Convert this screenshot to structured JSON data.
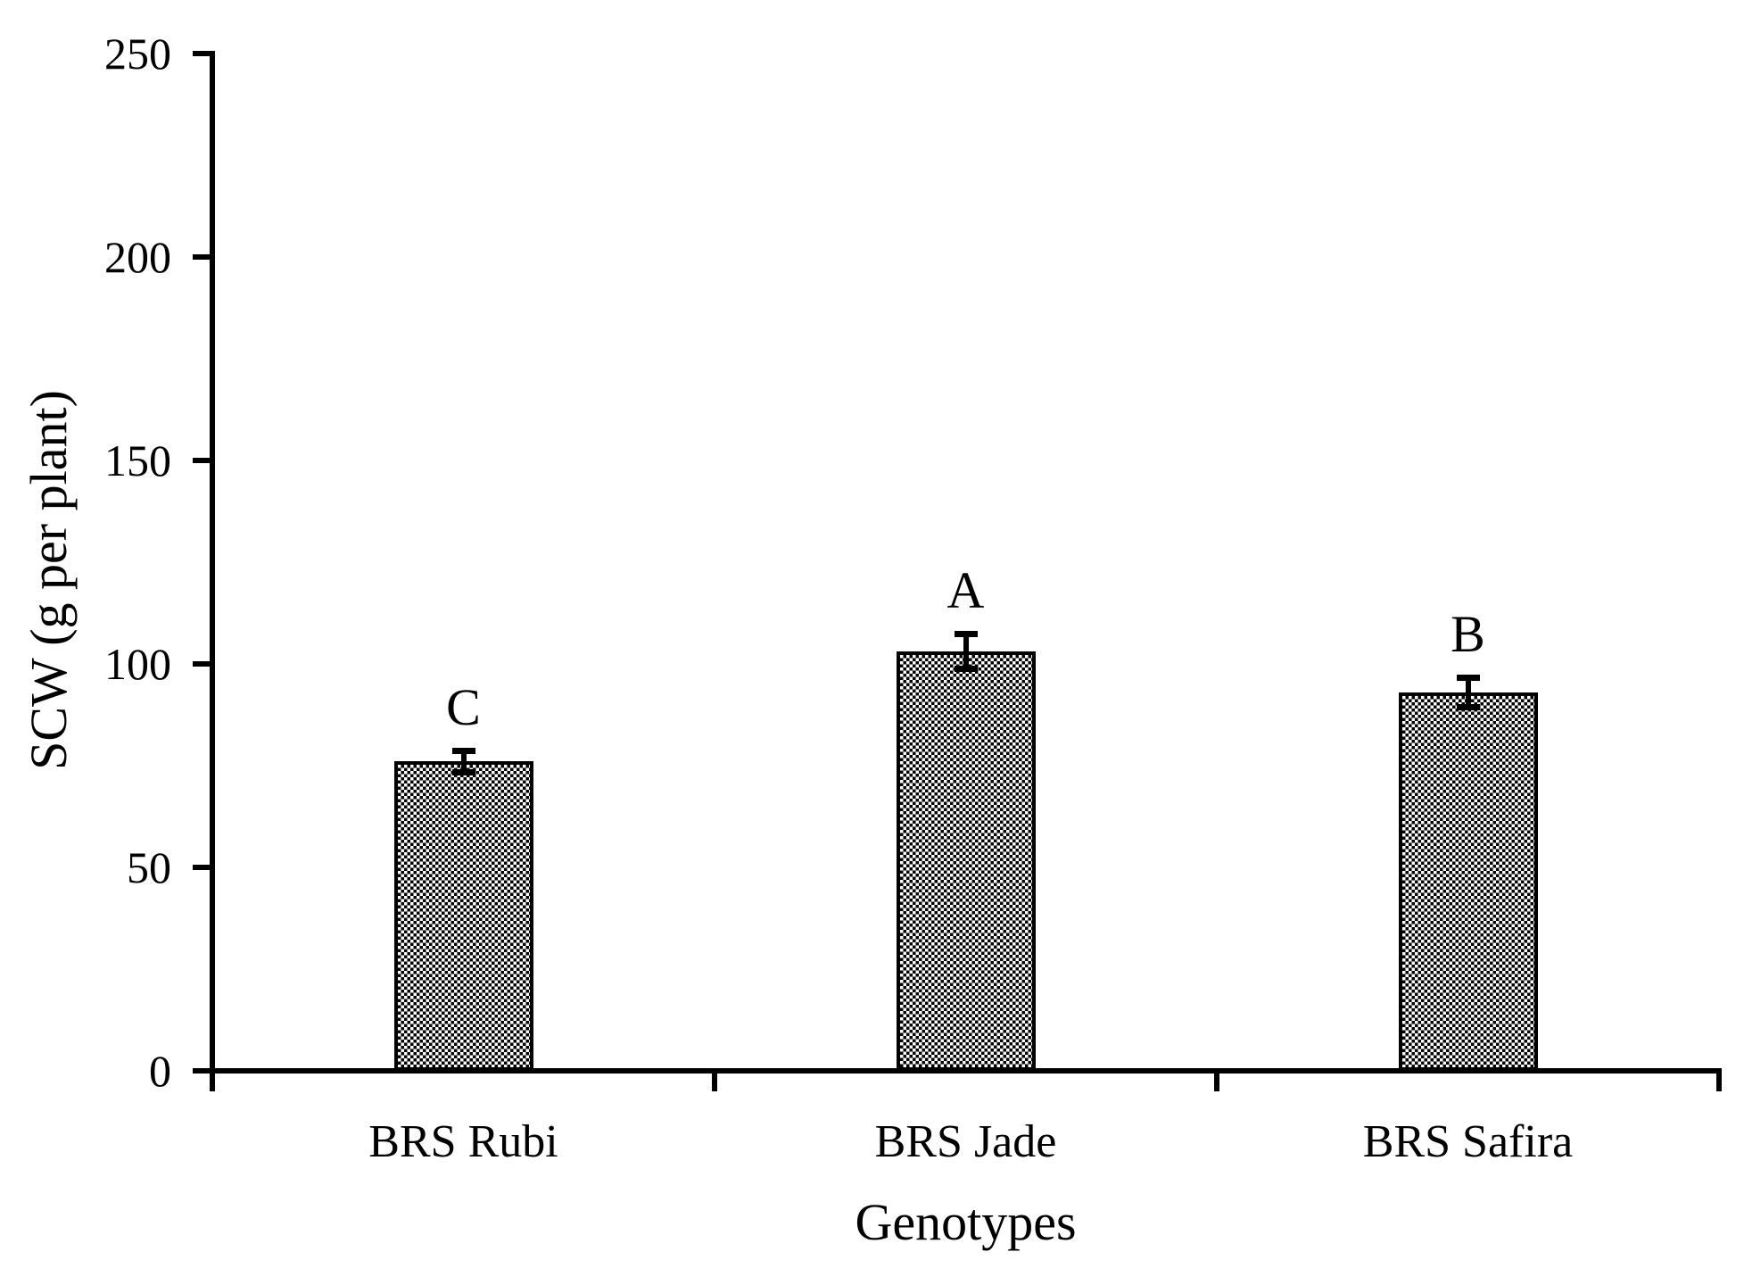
{
  "chart_data": {
    "type": "bar",
    "title": "",
    "xlabel": "Genotypes",
    "ylabel": "SCW (g per plant)",
    "categories": [
      "BRS Rubi",
      "BRS Jade",
      "BRS Safira"
    ],
    "values": [
      76,
      103,
      93
    ],
    "errors": [
      2.5,
      4.2,
      3.5
    ],
    "bar_letters": [
      "C",
      "A",
      "B"
    ],
    "ylim": [
      0,
      250
    ],
    "yticks": [
      0,
      50,
      100,
      150,
      200,
      250
    ],
    "legend": null,
    "grid": false,
    "layout": {
      "bar_fill": "black-white-checkerboard-pattern",
      "bar_border_color": "#000000",
      "axis_color": "#000000",
      "background_color": "#ffffff",
      "error_bars": "symmetric-with-caps"
    }
  }
}
